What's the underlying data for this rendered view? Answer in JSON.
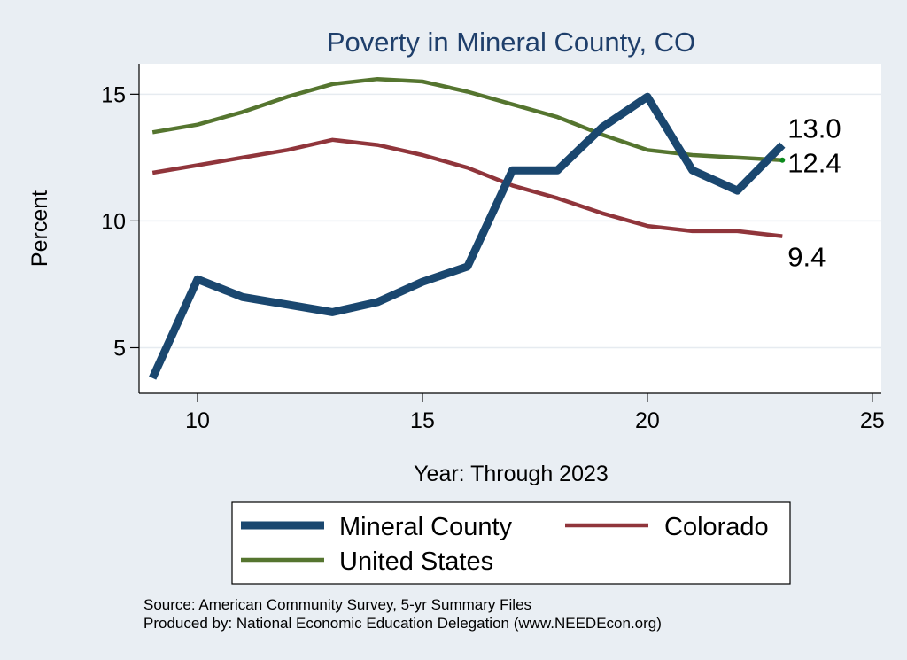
{
  "chart_data": {
    "type": "line",
    "title": "Poverty in Mineral County, CO",
    "xlabel": "Year: Through 2023",
    "ylabel": "Percent",
    "xlim": [
      8.7,
      25.2
    ],
    "ylim": [
      3.2,
      16.2
    ],
    "xticks": [
      10,
      15,
      20,
      25
    ],
    "yticks": [
      5,
      10,
      15
    ],
    "grid": true,
    "series": [
      {
        "name": "Mineral County",
        "color": "#1a476f",
        "x": [
          9,
          10,
          11,
          12,
          13,
          14,
          15,
          16,
          17,
          18,
          19,
          20,
          21,
          22,
          23
        ],
        "values": [
          3.8,
          7.7,
          7.0,
          6.7,
          6.4,
          6.8,
          7.6,
          8.2,
          12.0,
          12.0,
          13.7,
          14.9,
          12.0,
          11.2,
          13.0
        ],
        "end_label": "13.0"
      },
      {
        "name": "Colorado",
        "color": "#90353b",
        "x": [
          9,
          10,
          11,
          12,
          13,
          14,
          15,
          16,
          17,
          18,
          19,
          20,
          21,
          22,
          23
        ],
        "values": [
          11.9,
          12.2,
          12.5,
          12.8,
          13.2,
          13.0,
          12.6,
          12.1,
          11.4,
          10.9,
          10.3,
          9.8,
          9.6,
          9.6,
          9.4
        ],
        "end_label": "9.4"
      },
      {
        "name": "United States",
        "color": "#55752f",
        "x": [
          9,
          10,
          11,
          12,
          13,
          14,
          15,
          16,
          17,
          18,
          19,
          20,
          21,
          22,
          23
        ],
        "values": [
          13.5,
          13.8,
          14.3,
          14.9,
          15.4,
          15.6,
          15.5,
          15.1,
          14.6,
          14.1,
          13.4,
          12.8,
          12.6,
          12.5,
          12.4
        ],
        "end_label": "12.4"
      }
    ],
    "legend": {
      "position": "bottom",
      "entries": [
        "Mineral County",
        "Colorado",
        "United States"
      ]
    }
  },
  "source_lines": [
    "Source: American Community Survey, 5-yr Summary Files",
    "Produced by: National Economic Education Delegation (www.NEEDEcon.org)"
  ]
}
